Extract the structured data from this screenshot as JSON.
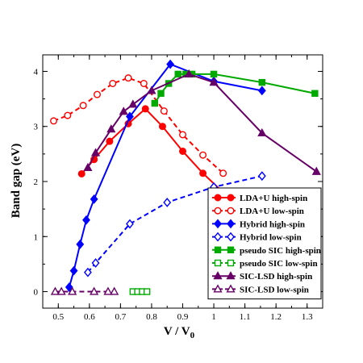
{
  "chart_data": {
    "type": "line",
    "xlabel": "V / V",
    "xlabel_sub": "0",
    "ylabel": "Band gap (eV)",
    "xlim": [
      0.45,
      1.35
    ],
    "ylim": [
      -0.3,
      4.3
    ],
    "xticks": [
      0.5,
      0.6,
      0.7,
      0.8,
      0.9,
      1.0,
      1.1,
      1.2,
      1.3
    ],
    "xtick_labels": [
      "0.5",
      "0.6",
      "0.7",
      "0.8",
      "0.9",
      "1",
      "1.1",
      "1.2",
      "1.3"
    ],
    "yticks": [
      0,
      1,
      2,
      3,
      4
    ],
    "ytick_labels": [
      "0",
      "1",
      "2",
      "3",
      "4"
    ],
    "grid": false,
    "legend_position": "bottom-right",
    "series": [
      {
        "name": "LDA+U high-spin",
        "color": "#ff0000",
        "marker": "circle",
        "filled": true,
        "dashed": false,
        "x": [
          0.575,
          0.615,
          0.665,
          0.725,
          0.78,
          0.835,
          0.9,
          0.965,
          1.04
        ],
        "y": [
          2.14,
          2.4,
          2.73,
          3.05,
          3.32,
          3.0,
          2.55,
          2.15,
          1.75
        ]
      },
      {
        "name": "LDA+U low-spin",
        "color": "#ff0000",
        "marker": "circle",
        "filled": false,
        "dashed": true,
        "x": [
          0.485,
          0.53,
          0.58,
          0.625,
          0.675,
          0.725,
          0.775,
          0.84,
          0.9,
          0.965,
          1.03
        ],
        "y": [
          3.1,
          3.2,
          3.38,
          3.58,
          3.78,
          3.88,
          3.78,
          3.28,
          2.85,
          2.48,
          2.15
        ]
      },
      {
        "name": "Hybrid high-spin",
        "color": "#0000ff",
        "marker": "diamond",
        "filled": true,
        "dashed": false,
        "x": [
          0.535,
          0.55,
          0.57,
          0.59,
          0.615,
          0.73,
          0.86,
          1.0,
          1.155
        ],
        "y": [
          0.08,
          0.38,
          0.86,
          1.3,
          1.68,
          3.18,
          4.13,
          3.82,
          3.65
        ]
      },
      {
        "name": "Hybrid low-spin",
        "color": "#0000ff",
        "marker": "diamond",
        "filled": false,
        "dashed": true,
        "x": [
          0.595,
          0.62,
          0.73,
          0.85,
          1.0,
          1.155
        ],
        "y": [
          0.35,
          0.52,
          1.23,
          1.62,
          1.9,
          2.1
        ]
      },
      {
        "name": "pseudo SIC high-spin",
        "color": "#00aa00",
        "marker": "square",
        "filled": true,
        "dashed": false,
        "x": [
          0.81,
          0.83,
          0.855,
          0.885,
          0.91,
          0.93,
          1.0,
          1.155,
          1.325
        ],
        "y": [
          3.42,
          3.6,
          3.78,
          3.95,
          3.95,
          3.95,
          3.95,
          3.8,
          3.6
        ]
      },
      {
        "name": "pseudo SIC low-spin",
        "color": "#00aa00",
        "marker": "square",
        "filled": false,
        "dashed": true,
        "x": [
          0.74,
          0.755,
          0.77,
          0.785
        ],
        "y": [
          0.0,
          0.0,
          0.0,
          0.0
        ]
      },
      {
        "name": "SIC-LSD high-spin",
        "color": "#660066",
        "marker": "triangle",
        "filled": true,
        "dashed": false,
        "x": [
          0.595,
          0.62,
          0.67,
          0.71,
          0.74,
          0.8,
          0.92,
          1.0,
          1.155,
          1.33
        ],
        "y": [
          2.25,
          2.52,
          2.95,
          3.27,
          3.4,
          3.65,
          3.95,
          3.8,
          2.88,
          2.18
        ]
      },
      {
        "name": "SIC-LSD low-spin",
        "color": "#660066",
        "marker": "triangle",
        "filled": false,
        "dashed": true,
        "x": [
          0.49,
          0.51,
          0.545,
          0.615,
          0.66,
          0.68
        ],
        "y": [
          0.0,
          0.0,
          0.0,
          0.0,
          0.0,
          0.0
        ]
      }
    ]
  }
}
